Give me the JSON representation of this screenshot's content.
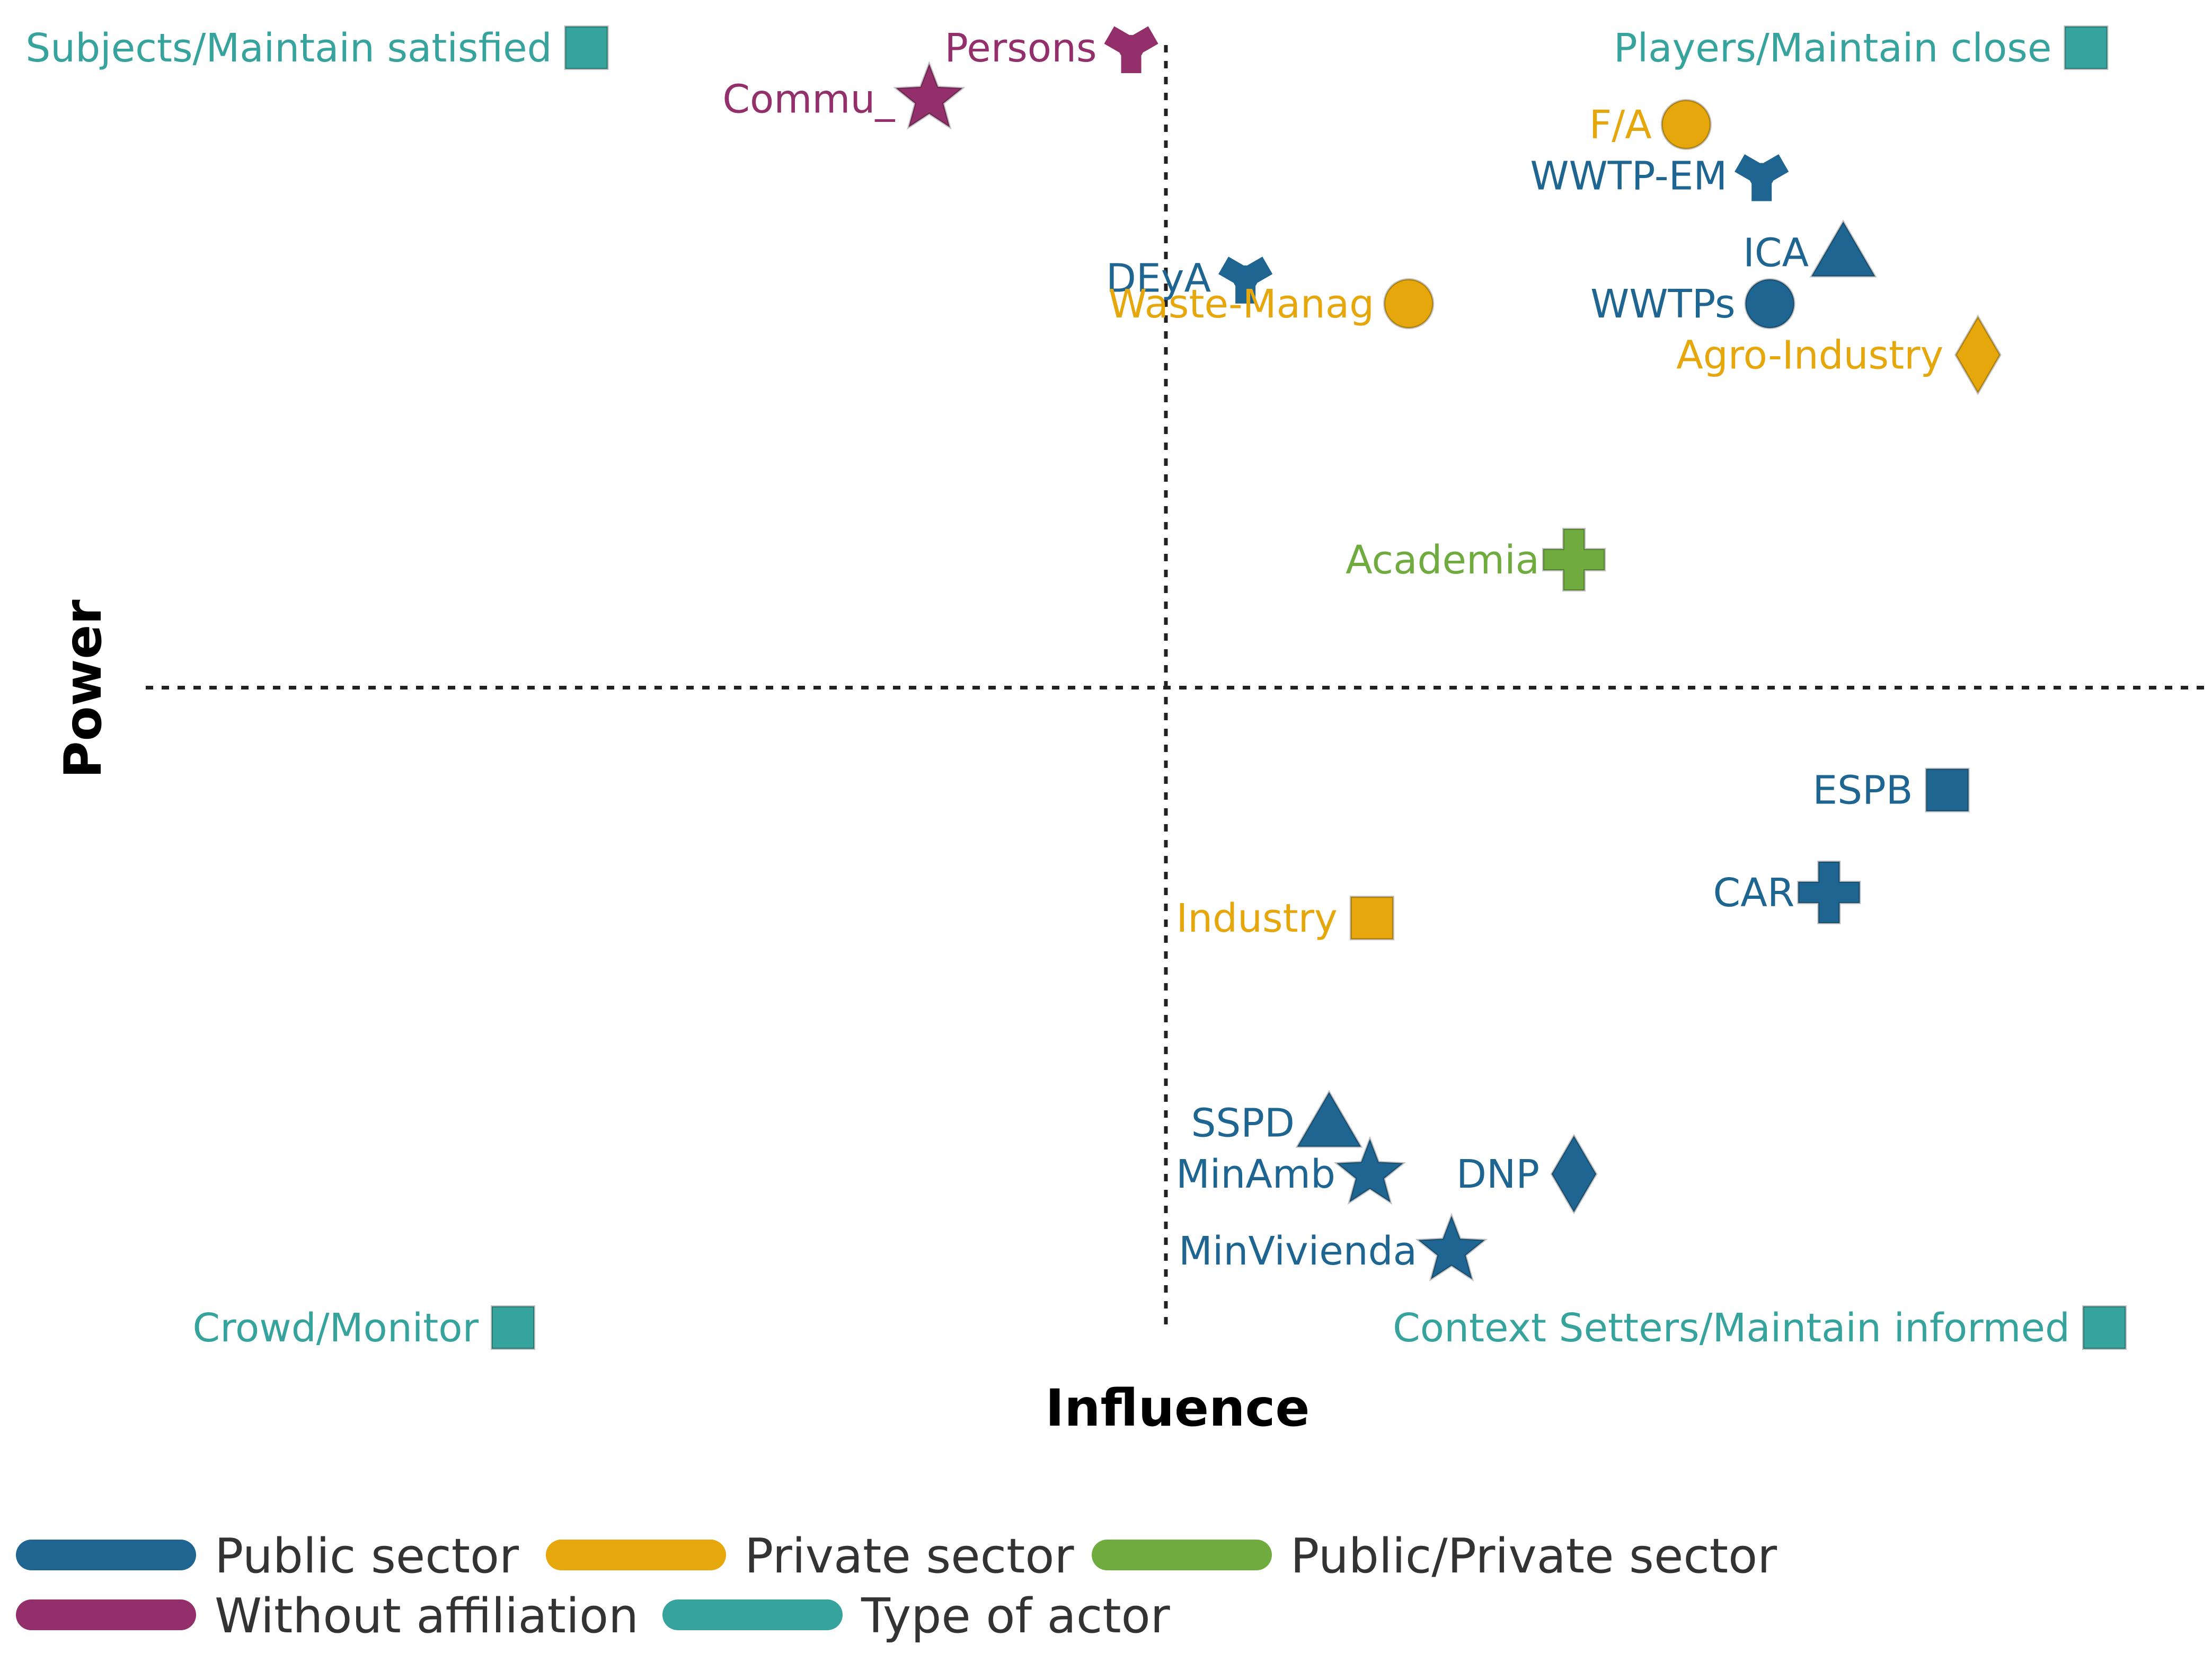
{
  "chart_data": {
    "type": "scatter",
    "xlabel": "Influence",
    "ylabel": "Power",
    "xlim": [
      0,
      10
    ],
    "ylim": [
      0,
      10
    ],
    "divider": {
      "x": 5,
      "y": 5
    },
    "grid": false,
    "legend_position": "bottom-left",
    "categories": [
      {
        "key": "public",
        "name": "Public sector",
        "color": "#1f6591"
      },
      {
        "key": "private",
        "name": "Private sector",
        "color": "#e5a70b"
      },
      {
        "key": "publicprivate",
        "name": "Public/Private sector",
        "color": "#70ab40"
      },
      {
        "key": "none",
        "name": "Without affiliation",
        "color": "#93306b"
      },
      {
        "key": "type",
        "name": "Type of actor",
        "color": "#36a39d"
      }
    ],
    "points": [
      {
        "label": "Subjects/Maintain satisfied",
        "category": "type",
        "shape": "square",
        "x": 2.16,
        "y": 10.0
      },
      {
        "label": "Persons",
        "category": "none",
        "shape": "tri-star",
        "x": 4.83,
        "y": 10.0
      },
      {
        "label": "Commu_",
        "category": "none",
        "shape": "star",
        "x": 3.84,
        "y": 9.6
      },
      {
        "label": "Players/Maintain close",
        "category": "type",
        "shape": "square",
        "x": 9.51,
        "y": 10.0
      },
      {
        "label": "F/A",
        "category": "private",
        "shape": "circle",
        "x": 7.55,
        "y": 9.4
      },
      {
        "label": "WWTP-EM",
        "category": "public",
        "shape": "tri-star",
        "x": 7.92,
        "y": 9.0
      },
      {
        "label": "ICA",
        "category": "public",
        "shape": "triangle",
        "x": 8.32,
        "y": 8.4
      },
      {
        "label": "DEyA",
        "category": "public",
        "shape": "tri-star",
        "x": 5.39,
        "y": 8.2
      },
      {
        "label": "Waste-Manag",
        "category": "private",
        "shape": "circle",
        "x": 6.19,
        "y": 8.0
      },
      {
        "label": "WWTPs",
        "category": "public",
        "shape": "circle",
        "x": 7.96,
        "y": 8.0
      },
      {
        "label": "Agro-Industry",
        "category": "private",
        "shape": "diamond",
        "x": 8.98,
        "y": 7.6
      },
      {
        "label": "Academia",
        "category": "publicprivate",
        "shape": "cross",
        "x": 7.0,
        "y": 6.0
      },
      {
        "label": "ESPB",
        "category": "public",
        "shape": "square",
        "x": 8.83,
        "y": 4.2
      },
      {
        "label": "CAR",
        "category": "public",
        "shape": "cross",
        "x": 8.25,
        "y": 3.4
      },
      {
        "label": "Industry",
        "category": "private",
        "shape": "square",
        "x": 6.01,
        "y": 3.2
      },
      {
        "label": "SSPD",
        "category": "public",
        "shape": "triangle",
        "x": 5.8,
        "y": 1.6
      },
      {
        "label": "MinAmb",
        "category": "public",
        "shape": "star",
        "x": 6.0,
        "y": 1.2
      },
      {
        "label": "DNP",
        "category": "public",
        "shape": "diamond",
        "x": 7.0,
        "y": 1.2
      },
      {
        "label": "MinVivienda",
        "category": "public",
        "shape": "star",
        "x": 6.4,
        "y": 0.6
      },
      {
        "label": "Crowd/Monitor",
        "category": "type",
        "shape": "square",
        "x": 1.8,
        "y": 0.0
      },
      {
        "label": "Context Setters/Maintain informed",
        "category": "type",
        "shape": "square",
        "x": 9.6,
        "y": 0.0
      }
    ]
  }
}
